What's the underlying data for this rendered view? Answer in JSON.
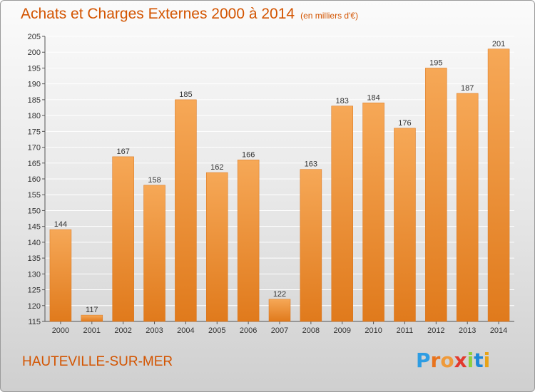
{
  "header": {
    "title": "Achats et Charges Externes 2000 à 2014",
    "subtitle": "(en milliers d'€)"
  },
  "footer": {
    "place": "HAUTEVILLE-SUR-MER",
    "logo_letters": [
      "P",
      "r",
      "o",
      "x",
      "i",
      "t",
      "i"
    ],
    "logo_colors": [
      "#2e9de3",
      "#e8731d",
      "#ef9a3a",
      "#e23a2e",
      "#8fcf3c",
      "#1e88d8",
      "#e8a317"
    ]
  },
  "chart_data": {
    "type": "bar",
    "title": "Achats et Charges Externes 2000 à 2014",
    "subtitle": "(en milliers d'€)",
    "categories": [
      "2000",
      "2001",
      "2002",
      "2003",
      "2004",
      "2005",
      "2006",
      "2007",
      "2008",
      "2009",
      "2010",
      "2011",
      "2012",
      "2013",
      "2014"
    ],
    "values": [
      144,
      117,
      167,
      158,
      185,
      162,
      166,
      122,
      163,
      183,
      184,
      176,
      195,
      187,
      201
    ],
    "ylim": [
      115,
      205
    ],
    "yticks": [
      115,
      120,
      125,
      130,
      135,
      140,
      145,
      150,
      155,
      160,
      165,
      170,
      175,
      180,
      185,
      190,
      195,
      200,
      205
    ],
    "grid": true,
    "bar_color": "#ef8f2f",
    "bar_color_light": "#f6a857",
    "bar_color_dark": "#e07a1c"
  }
}
